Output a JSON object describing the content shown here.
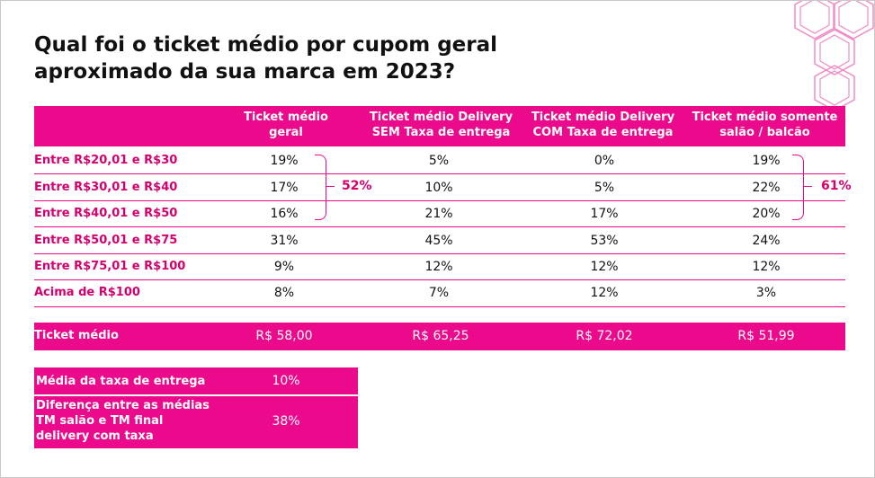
{
  "title": {
    "line1": "Qual foi o ticket médio por cupom geral",
    "line2": "aproximado da sua marca em 2023?"
  },
  "colors": {
    "accent": "#ec0a8c",
    "label_text": "#d4006f"
  },
  "table": {
    "columns": [
      {
        "line1": "Ticket médio",
        "line2": "geral"
      },
      {
        "line1": "Ticket médio Delivery",
        "line2": "SEM Taxa de entrega"
      },
      {
        "line1": "Ticket médio Delivery",
        "line2": "COM Taxa de entrega"
      },
      {
        "line1": "Ticket médio somente",
        "line2": "salão / balcão"
      }
    ],
    "rows": [
      {
        "label": "Entre R$20,01 e R$30",
        "values": [
          "19%",
          "5%",
          "0%",
          "19%"
        ]
      },
      {
        "label": "Entre R$30,01 e R$40",
        "values": [
          "17%",
          "10%",
          "5%",
          "22%"
        ]
      },
      {
        "label": "Entre R$40,01 e R$50",
        "values": [
          "16%",
          "21%",
          "17%",
          "20%"
        ]
      },
      {
        "label": "Entre R$50,01 e R$75",
        "values": [
          "31%",
          "45%",
          "53%",
          "24%"
        ]
      },
      {
        "label": "Entre R$75,01 e R$100",
        "values": [
          "9%",
          "12%",
          "12%",
          "12%"
        ]
      },
      {
        "label": "Acima de R$100",
        "values": [
          "8%",
          "7%",
          "12%",
          "3%"
        ]
      }
    ],
    "bracket_totals": {
      "geral": "52%",
      "salao": "61%"
    }
  },
  "ticket_medio": {
    "label": "Ticket médio",
    "values": [
      "R$ 58,00",
      "R$ 65,25",
      "R$ 72,02",
      "R$ 51,99"
    ]
  },
  "summary": {
    "taxa_label": "Média da taxa de entrega",
    "taxa_value": "10%",
    "dif_label_1": "Diferença entre as médias",
    "dif_label_2": "TM  salão e TM final",
    "dif_label_3": "delivery com taxa",
    "dif_value": "38%"
  }
}
